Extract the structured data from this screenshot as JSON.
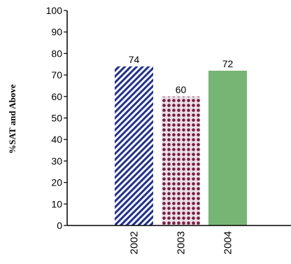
{
  "chart_data": {
    "type": "bar",
    "title": "",
    "xlabel": "",
    "ylabel": "%SAT and Above",
    "categories": [
      "2002",
      "2003",
      "2004"
    ],
    "values": [
      74,
      60,
      72
    ],
    "ylim": [
      0,
      100
    ],
    "yticks": [
      0,
      10,
      20,
      30,
      40,
      50,
      60,
      70,
      80,
      90,
      100
    ],
    "grid": false,
    "legend": "none",
    "bar_fills": [
      {
        "style": "diagonal-stripes",
        "color": "#1f2f96",
        "background": "#ffffff"
      },
      {
        "style": "dots",
        "color": "#7c1740",
        "background": "#e8e1e5"
      },
      {
        "style": "solid",
        "color": "#77b574"
      }
    ]
  }
}
